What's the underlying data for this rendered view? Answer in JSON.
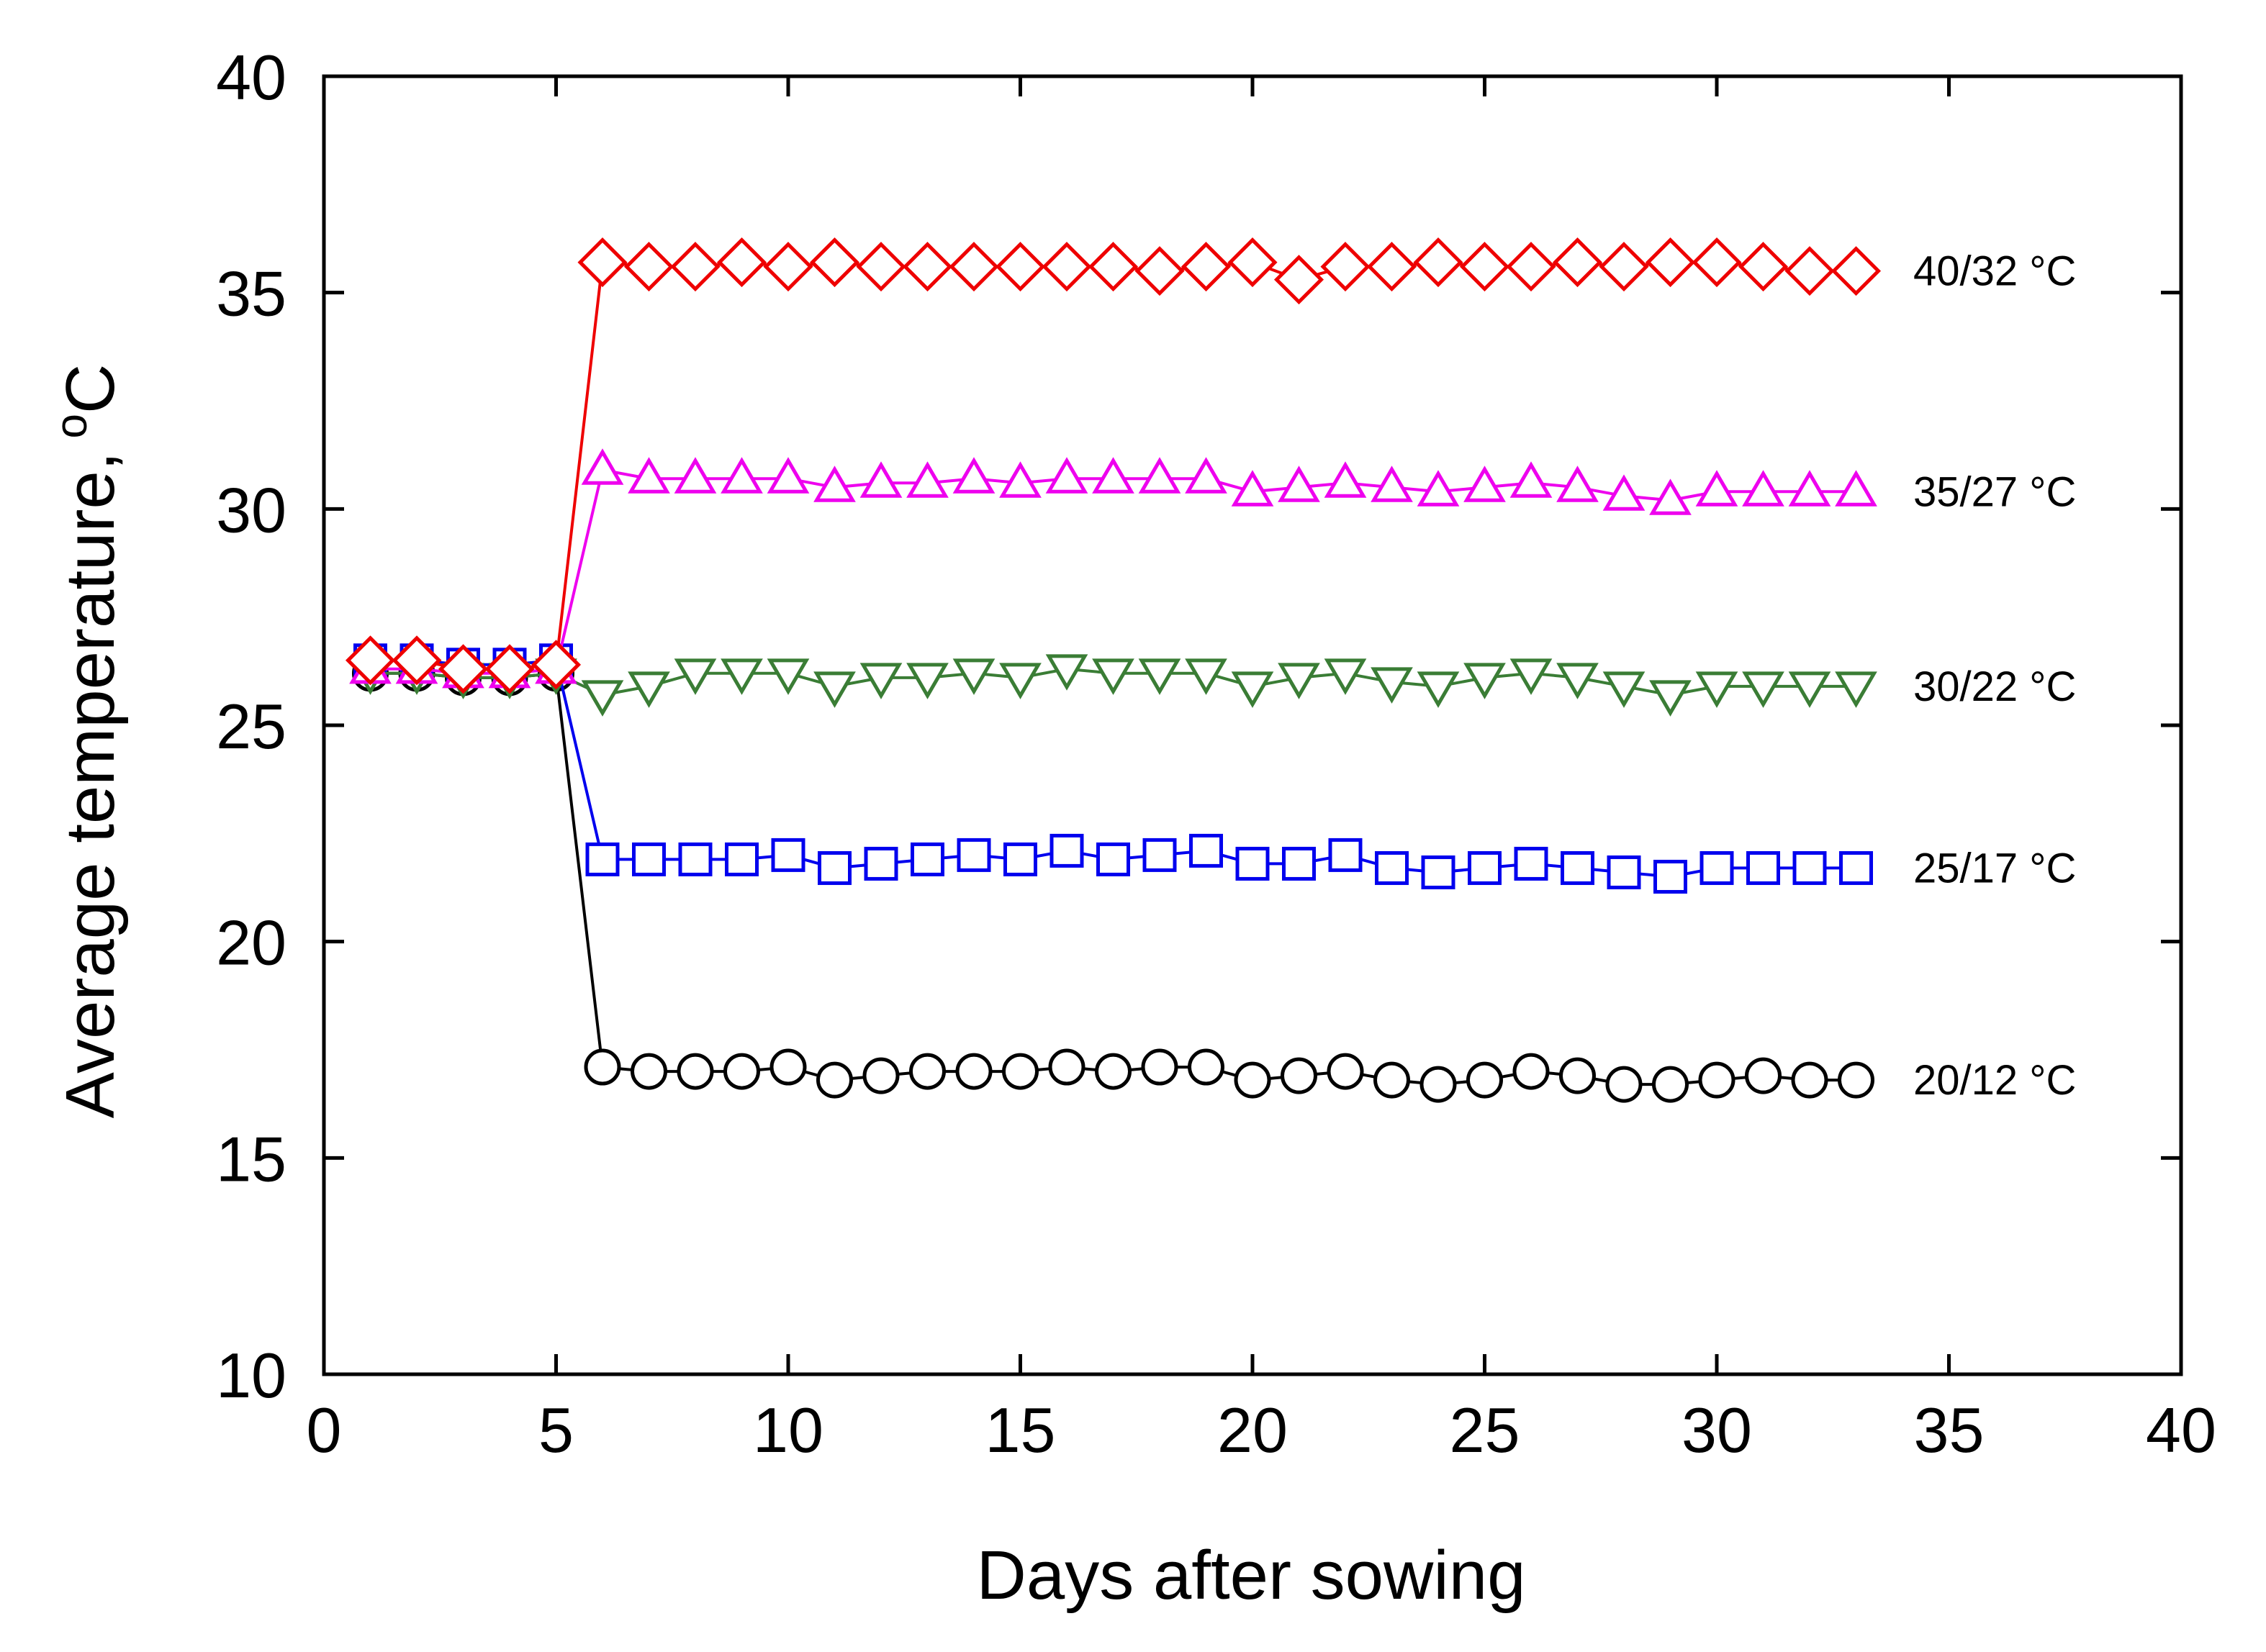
{
  "chart_data": {
    "type": "line",
    "title": "",
    "xlabel": "Days after sowing",
    "ylabel": "Average temperature,",
    "ylabel_sup": "o",
    "ylabel_unit": "C",
    "xlim": [
      0,
      40
    ],
    "ylim": [
      10,
      40
    ],
    "xticks": [
      0,
      5,
      10,
      15,
      20,
      25,
      30,
      35,
      40
    ],
    "yticks": [
      10,
      15,
      20,
      25,
      30,
      35,
      40
    ],
    "grid": false,
    "x": [
      1,
      2,
      3,
      4,
      5,
      6,
      7,
      8,
      9,
      10,
      11,
      12,
      13,
      14,
      15,
      16,
      17,
      18,
      19,
      20,
      21,
      22,
      23,
      24,
      25,
      26,
      27,
      28,
      29,
      30,
      31,
      32,
      33
    ],
    "series": [
      {
        "name": "20/12 °C",
        "color": "#000000",
        "marker": "circle",
        "values": [
          26.2,
          26.2,
          26.1,
          26.1,
          26.2,
          17.1,
          17.0,
          17.0,
          17.0,
          17.1,
          16.8,
          16.9,
          17.0,
          17.0,
          17.0,
          17.1,
          17.0,
          17.1,
          17.1,
          16.8,
          16.9,
          17.0,
          16.8,
          16.7,
          16.8,
          17.0,
          16.9,
          16.7,
          16.7,
          16.8,
          16.9,
          16.8,
          16.8
        ]
      },
      {
        "name": "25/17 °C",
        "color": "#0000ee",
        "marker": "square",
        "values": [
          26.5,
          26.5,
          26.4,
          26.4,
          26.5,
          21.9,
          21.9,
          21.9,
          21.9,
          22.0,
          21.7,
          21.8,
          21.9,
          22.0,
          21.9,
          22.1,
          21.9,
          22.0,
          22.1,
          21.8,
          21.8,
          22.0,
          21.7,
          21.6,
          21.7,
          21.8,
          21.7,
          21.6,
          21.5,
          21.7,
          21.7,
          21.7,
          21.7
        ]
      },
      {
        "name": "30/22 °C",
        "color": "#3a7d35",
        "marker": "triangle-down",
        "values": [
          26.2,
          26.2,
          26.1,
          26.1,
          26.2,
          25.7,
          25.9,
          26.2,
          26.2,
          26.2,
          25.9,
          26.1,
          26.1,
          26.2,
          26.1,
          26.3,
          26.2,
          26.2,
          26.2,
          25.9,
          26.1,
          26.2,
          26.0,
          25.9,
          26.1,
          26.2,
          26.1,
          25.9,
          25.7,
          25.9,
          25.9,
          25.9,
          25.9
        ]
      },
      {
        "name": "35/27 °C",
        "color": "#ee00ee",
        "marker": "triangle-up",
        "values": [
          26.3,
          26.3,
          26.2,
          26.2,
          26.3,
          30.9,
          30.7,
          30.7,
          30.7,
          30.7,
          30.5,
          30.6,
          30.6,
          30.7,
          30.6,
          30.7,
          30.7,
          30.7,
          30.7,
          30.4,
          30.5,
          30.6,
          30.5,
          30.4,
          30.5,
          30.6,
          30.5,
          30.3,
          30.2,
          30.4,
          30.4,
          30.4,
          30.4
        ]
      },
      {
        "name": "40/32 °C",
        "color": "#ee0000",
        "marker": "diamond",
        "values": [
          26.5,
          26.5,
          26.3,
          26.3,
          26.4,
          35.7,
          35.6,
          35.6,
          35.7,
          35.6,
          35.7,
          35.6,
          35.6,
          35.6,
          35.6,
          35.6,
          35.6,
          35.5,
          35.6,
          35.7,
          35.3,
          35.6,
          35.6,
          35.7,
          35.6,
          35.6,
          35.7,
          35.6,
          35.7,
          35.7,
          35.6,
          35.5,
          35.5
        ]
      }
    ],
    "series_label_order": [
      "40/32 °C",
      "35/27 °C",
      "30/22 °C",
      "25/17 °C",
      "20/12 °C"
    ]
  }
}
